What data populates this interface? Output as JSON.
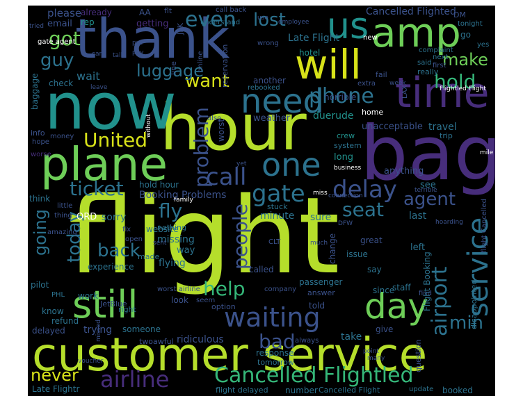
{
  "palette": {
    "lime": "#b5de2b",
    "yellow_green": "#d8e219",
    "green": "#6ece58",
    "teal": "#21918c",
    "blue_teal": "#2c728e",
    "blue": "#3b528b",
    "indigo": "#472d7b",
    "purple": "#440154",
    "light_teal": "#35b779",
    "background": "#000000"
  },
  "words": [
    {
      "text": "flight"
    },
    {
      "text": "customer service"
    },
    {
      "text": "hour"
    },
    {
      "text": "now"
    },
    {
      "text": "thank"
    },
    {
      "text": "bag"
    },
    {
      "text": "plane"
    },
    {
      "text": "still"
    },
    {
      "text": "time"
    },
    {
      "text": "amp"
    },
    {
      "text": "will"
    },
    {
      "text": "us"
    },
    {
      "text": "day"
    },
    {
      "text": "need"
    },
    {
      "text": "one"
    },
    {
      "text": "waiting"
    },
    {
      "text": "Cancelled Flightled"
    },
    {
      "text": "airline"
    },
    {
      "text": "service"
    },
    {
      "text": "delay"
    },
    {
      "text": "gate"
    },
    {
      "text": "call"
    },
    {
      "text": "airport"
    },
    {
      "text": "United"
    },
    {
      "text": "phone"
    },
    {
      "text": "hold"
    },
    {
      "text": "ticket"
    },
    {
      "text": "problem"
    },
    {
      "text": "people"
    },
    {
      "text": "want"
    },
    {
      "text": "even"
    },
    {
      "text": "got"
    },
    {
      "text": "lost"
    },
    {
      "text": "guy"
    },
    {
      "text": "make"
    },
    {
      "text": "luggage"
    },
    {
      "text": "seat"
    },
    {
      "text": "agent"
    },
    {
      "text": "back"
    },
    {
      "text": "today"
    },
    {
      "text": "going"
    },
    {
      "text": "fly"
    },
    {
      "text": "help"
    },
    {
      "text": "min"
    },
    {
      "text": "bad"
    },
    {
      "text": "never"
    },
    {
      "text": "wait"
    },
    {
      "text": "Late Flight"
    },
    {
      "text": "Cancelled Flighted"
    },
    {
      "text": "please"
    },
    {
      "text": "already"
    },
    {
      "text": "email"
    },
    {
      "text": "rep"
    },
    {
      "text": "getting"
    },
    {
      "text": "AA"
    },
    {
      "text": "flt"
    },
    {
      "text": "call back"
    },
    {
      "text": "DM"
    },
    {
      "text": "tonight"
    },
    {
      "text": "hotel"
    },
    {
      "text": "check"
    },
    {
      "text": "baggage"
    },
    {
      "text": "rebooked"
    },
    {
      "text": "another"
    },
    {
      "text": "weather"
    },
    {
      "text": "duerude"
    },
    {
      "text": "horrible"
    },
    {
      "text": "unacceptable"
    },
    {
      "text": "travel"
    },
    {
      "text": "crew"
    },
    {
      "text": "system"
    },
    {
      "text": "long"
    },
    {
      "text": "anything"
    },
    {
      "text": "see"
    },
    {
      "text": "last"
    },
    {
      "text": "sure"
    },
    {
      "text": "minute"
    },
    {
      "text": "stuck"
    },
    {
      "text": "Booking Problems"
    },
    {
      "text": "hold hour"
    },
    {
      "text": "worst"
    },
    {
      "text": "ORD"
    },
    {
      "text": "sorry"
    },
    {
      "text": "website"
    },
    {
      "text": "nothing"
    },
    {
      "text": "missing"
    },
    {
      "text": "way"
    },
    {
      "text": "flying"
    },
    {
      "text": "experience"
    },
    {
      "text": "made"
    },
    {
      "text": "called"
    },
    {
      "text": "CLT"
    },
    {
      "text": "great"
    },
    {
      "text": "issue"
    },
    {
      "text": "left"
    },
    {
      "text": "change"
    },
    {
      "text": "say"
    },
    {
      "text": "Flight Booking"
    },
    {
      "text": "passenger"
    },
    {
      "text": "staff"
    },
    {
      "text": "since"
    },
    {
      "text": "answer"
    },
    {
      "text": "told"
    },
    {
      "text": "find"
    },
    {
      "text": "work"
    },
    {
      "text": "JetBlue"
    },
    {
      "text": "worst airline"
    },
    {
      "text": "company"
    },
    {
      "text": "know"
    },
    {
      "text": "refund"
    },
    {
      "text": "look"
    },
    {
      "text": "seem"
    },
    {
      "text": "right"
    },
    {
      "text": "option"
    },
    {
      "text": "delayed"
    },
    {
      "text": "trying"
    },
    {
      "text": "someone"
    },
    {
      "text": "twoawful"
    },
    {
      "text": "ridiculous"
    },
    {
      "text": "always"
    },
    {
      "text": "take"
    },
    {
      "text": "give"
    },
    {
      "text": "response"
    },
    {
      "text": "tomorrow"
    },
    {
      "text": "question"
    },
    {
      "text": "Late Flightr"
    },
    {
      "text": "flight delayed"
    },
    {
      "text": "number"
    },
    {
      "text": "Cancelled Flight"
    },
    {
      "text": "update"
    },
    {
      "text": "booked"
    },
    {
      "text": "pilot"
    },
    {
      "text": "PHL"
    },
    {
      "text": "think"
    },
    {
      "text": "little"
    },
    {
      "text": "thing"
    },
    {
      "text": "amazing"
    },
    {
      "text": "fix"
    },
    {
      "text": "open"
    },
    {
      "text": "also"
    },
    {
      "text": "info"
    },
    {
      "text": "hope"
    },
    {
      "text": "money"
    },
    {
      "text": "worse"
    },
    {
      "text": "first"
    },
    {
      "text": "fail"
    },
    {
      "text": "really"
    },
    {
      "text": "said"
    },
    {
      "text": "next"
    },
    {
      "text": "yes"
    },
    {
      "text": "go"
    },
    {
      "text": "new"
    },
    {
      "text": "complaint"
    },
    {
      "text": "reservation"
    },
    {
      "text": "online"
    },
    {
      "text": "line"
    },
    {
      "text": "wrong"
    },
    {
      "text": "employee"
    },
    {
      "text": "understand"
    },
    {
      "text": "JFK"
    },
    {
      "text": "put"
    },
    {
      "text": "pay"
    },
    {
      "text": "care"
    },
    {
      "text": "talk"
    },
    {
      "text": "tried"
    },
    {
      "text": "gate agent"
    },
    {
      "text": "home"
    },
    {
      "text": "trip"
    },
    {
      "text": "extra"
    },
    {
      "text": "week"
    },
    {
      "text": "LAX"
    },
    {
      "text": "leave"
    },
    {
      "text": "Flightled Flight"
    },
    {
      "text": "disappointed"
    },
    {
      "text": "flight Cancelled"
    },
    {
      "text": "mile"
    },
    {
      "text": "business"
    },
    {
      "text": "yet"
    },
    {
      "text": "connection"
    },
    {
      "text": "terrible"
    },
    {
      "text": "DFW"
    },
    {
      "text": "family"
    },
    {
      "text": "hoarding"
    },
    {
      "text": "much"
    },
    {
      "text": "point"
    },
    {
      "text": "many"
    },
    {
      "text": "voucher"
    },
    {
      "text": "missed"
    },
    {
      "text": "sent"
    },
    {
      "text": "without"
    },
    {
      "text": "use"
    },
    {
      "text": "miss"
    }
  ]
}
